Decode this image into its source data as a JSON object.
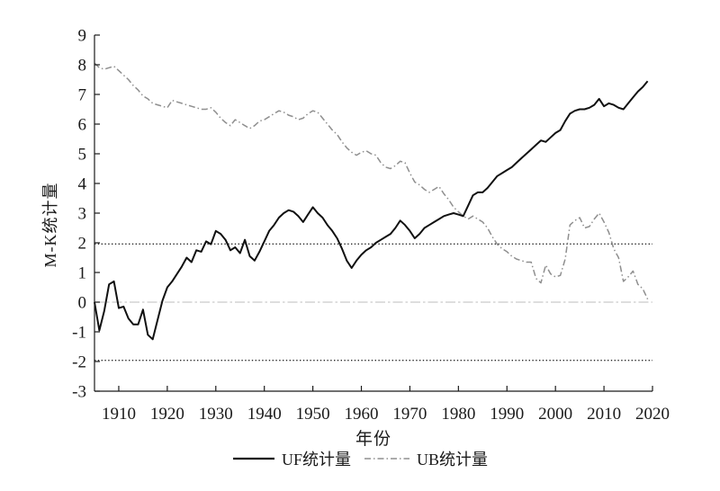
{
  "page": {
    "background": "#ffffff"
  },
  "chart_data": {
    "type": "line",
    "title": "",
    "xlabel": "年份",
    "ylabel": "M-K统计量",
    "xlim": [
      1905,
      2020
    ],
    "ylim": [
      -3,
      9
    ],
    "x_ticks": [
      1910,
      1920,
      1930,
      1940,
      1950,
      1960,
      1970,
      1980,
      1990,
      2000,
      2010,
      2020
    ],
    "y_ticks": [
      9,
      8,
      7,
      6,
      5,
      4,
      3,
      2,
      1,
      0,
      -1,
      -2,
      -3
    ],
    "grid": false,
    "axis_color": "#1a1a1a",
    "reference_lines": [
      {
        "name": "upper-critical-line",
        "y": 1.96,
        "style": "dotted",
        "color": "#2b2b2b",
        "width": 1.4
      },
      {
        "name": "zero-line",
        "y": 0,
        "style": "long-dash-dot",
        "color": "#c9c9c9",
        "width": 1.3
      },
      {
        "name": "lower-critical-line",
        "y": -1.96,
        "style": "dotted",
        "color": "#2b2b2b",
        "width": 1.4
      }
    ],
    "x": [
      1905,
      1906,
      1907,
      1908,
      1909,
      1910,
      1911,
      1912,
      1913,
      1914,
      1915,
      1916,
      1917,
      1918,
      1919,
      1920,
      1921,
      1922,
      1923,
      1924,
      1925,
      1926,
      1927,
      1928,
      1929,
      1930,
      1931,
      1932,
      1933,
      1934,
      1935,
      1936,
      1937,
      1938,
      1939,
      1940,
      1941,
      1942,
      1943,
      1944,
      1945,
      1946,
      1947,
      1948,
      1949,
      1950,
      1951,
      1952,
      1953,
      1954,
      1955,
      1956,
      1957,
      1958,
      1959,
      1960,
      1961,
      1962,
      1963,
      1964,
      1965,
      1966,
      1967,
      1968,
      1969,
      1970,
      1971,
      1972,
      1973,
      1974,
      1975,
      1976,
      1977,
      1978,
      1979,
      1980,
      1981,
      1982,
      1983,
      1984,
      1985,
      1986,
      1987,
      1988,
      1989,
      1990,
      1991,
      1992,
      1993,
      1994,
      1995,
      1996,
      1997,
      1998,
      1999,
      2000,
      2001,
      2002,
      2003,
      2004,
      2005,
      2006,
      2007,
      2008,
      2009,
      2010,
      2011,
      2012,
      2013,
      2014,
      2015,
      2016,
      2017,
      2018,
      2019
    ],
    "series": [
      {
        "name": "UF统计量",
        "color": "#111111",
        "style": "solid",
        "width": 2,
        "values": [
          0,
          -0.95,
          -0.3,
          0.6,
          0.7,
          -0.2,
          -0.15,
          -0.55,
          -0.75,
          -0.75,
          -0.25,
          -1.1,
          -1.25,
          -0.6,
          0.05,
          0.5,
          0.7,
          0.95,
          1.2,
          1.5,
          1.35,
          1.75,
          1.7,
          2.05,
          1.95,
          2.4,
          2.3,
          2.1,
          1.75,
          1.85,
          1.65,
          2.1,
          1.55,
          1.4,
          1.7,
          2.05,
          2.4,
          2.6,
          2.85,
          3.0,
          3.1,
          3.05,
          2.9,
          2.7,
          2.95,
          3.2,
          3.0,
          2.85,
          2.6,
          2.4,
          2.15,
          1.8,
          1.4,
          1.15,
          1.4,
          1.6,
          1.75,
          1.85,
          2.0,
          2.1,
          2.2,
          2.3,
          2.5,
          2.75,
          2.6,
          2.4,
          2.15,
          2.3,
          2.5,
          2.6,
          2.7,
          2.8,
          2.9,
          2.95,
          3.0,
          2.95,
          2.9,
          3.25,
          3.6,
          3.7,
          3.7,
          3.85,
          4.05,
          4.25,
          4.35,
          4.45,
          4.55,
          4.7,
          4.85,
          5.0,
          5.15,
          5.3,
          5.45,
          5.4,
          5.55,
          5.7,
          5.8,
          6.1,
          6.35,
          6.45,
          6.5,
          6.5,
          6.55,
          6.65,
          6.85,
          6.6,
          6.7,
          6.65,
          6.55,
          6.5,
          6.7,
          6.9,
          7.1,
          7.25,
          7.45
        ]
      },
      {
        "name": "UB统计量",
        "color": "#8f8f8f",
        "style": "dash-dot",
        "width": 1.5,
        "values": [
          8.05,
          7.9,
          7.85,
          7.9,
          7.95,
          7.8,
          7.65,
          7.5,
          7.3,
          7.15,
          6.95,
          6.85,
          6.7,
          6.65,
          6.6,
          6.55,
          6.8,
          6.75,
          6.7,
          6.65,
          6.6,
          6.55,
          6.5,
          6.5,
          6.55,
          6.4,
          6.2,
          6.05,
          5.95,
          6.15,
          6.05,
          5.95,
          5.85,
          5.95,
          6.1,
          6.15,
          6.25,
          6.35,
          6.45,
          6.4,
          6.3,
          6.25,
          6.15,
          6.2,
          6.35,
          6.45,
          6.4,
          6.2,
          6.0,
          5.8,
          5.65,
          5.4,
          5.2,
          5.05,
          4.95,
          5.05,
          5.1,
          5.0,
          4.95,
          4.7,
          4.55,
          4.5,
          4.6,
          4.75,
          4.7,
          4.35,
          4.05,
          3.95,
          3.8,
          3.7,
          3.8,
          3.9,
          3.65,
          3.45,
          3.2,
          3.05,
          2.9,
          2.8,
          2.9,
          2.8,
          2.7,
          2.5,
          2.2,
          1.95,
          1.8,
          1.7,
          1.55,
          1.45,
          1.4,
          1.35,
          1.35,
          0.8,
          0.65,
          1.25,
          0.95,
          0.85,
          0.9,
          1.45,
          2.6,
          2.75,
          2.85,
          2.5,
          2.55,
          2.8,
          3.0,
          2.7,
          2.35,
          1.8,
          1.5,
          0.7,
          0.85,
          1.05,
          0.6,
          0.45,
          0.1
        ]
      }
    ],
    "legend": {
      "position": "bottom-center",
      "entries": [
        {
          "label": "UF统计量",
          "line": "solid",
          "color": "#111111"
        },
        {
          "label": "UB统计量",
          "line": "dash-dot",
          "color": "#8f8f8f"
        }
      ]
    }
  }
}
